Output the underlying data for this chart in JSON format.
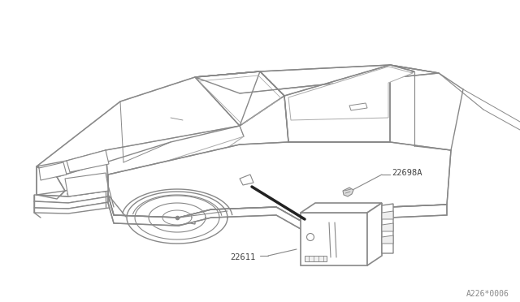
{
  "background_color": "#ffffff",
  "line_color": "#aaaaaa",
  "mid_color": "#888888",
  "dark_color": "#555555",
  "black_color": "#222222",
  "label_22698A": "22698A",
  "label_22611": "22611",
  "footer_text": "A226*0006",
  "fig_width": 6.4,
  "fig_height": 3.72,
  "dpi": 100
}
